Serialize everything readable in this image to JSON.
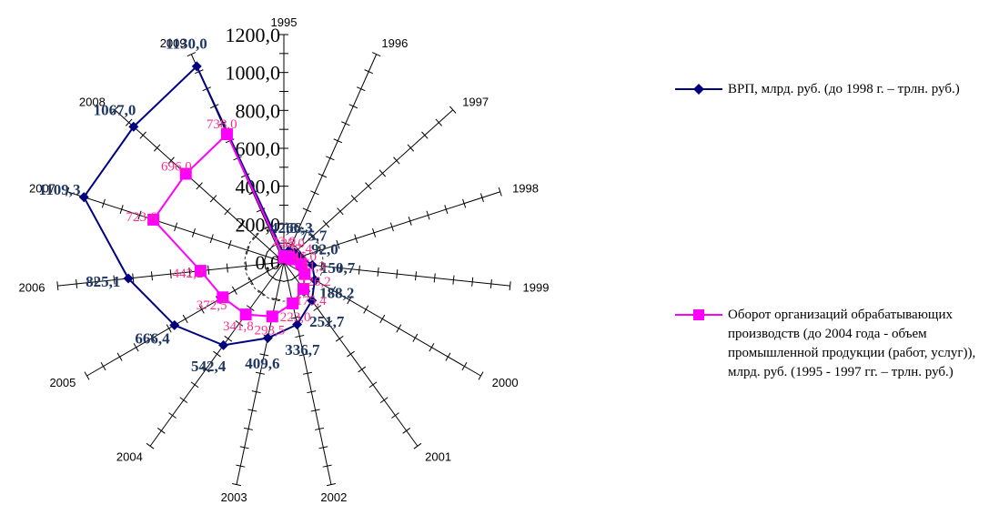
{
  "chart_data": {
    "type": "radar",
    "categories": [
      "1995",
      "1996",
      "1997",
      "1998",
      "1999",
      "2000",
      "2001",
      "2002",
      "2003",
      "2004",
      "2005",
      "2006",
      "2007",
      "2008",
      "2009"
    ],
    "rlim": [
      0,
      1200
    ],
    "r_ticks": [
      "0,0",
      "200,0",
      "400,0",
      "600,0",
      "800,0",
      "1000,0",
      "1200,0"
    ],
    "series": [
      {
        "name": "ВРП, млрд. руб. (до 1998 г. – трлн. руб.)",
        "color": "#000080",
        "marker": "diamond",
        "values": [
          42.8,
          66.3,
          75.7,
          92.0,
          150.7,
          188.2,
          251.7,
          336.7,
          409.6,
          542.4,
          666.4,
          825.1,
          1109.3,
          1067.0,
          1130.0
        ],
        "labels": [
          "42,8",
          "66,3",
          "75,7",
          "92,0",
          "150,7",
          "188,2",
          "251,7",
          "336,7",
          "409,6",
          "542,4",
          "666,4",
          "825,1",
          "1109,3",
          "1067,0",
          "1130,0"
        ]
      },
      {
        "name": "Оборот организаций обрабатывающих производств (до 2004 года - объем промышленной продукции (работ, услуг)), млрд. руб. (1995 - 1997 гг. – трлн. руб.)",
        "color": "#ff00ff",
        "marker": "square",
        "values": [
          23.9,
          35.0,
          37.4,
          46.0,
          91.3,
          126.2,
          175.4,
          223.0,
          293.5,
          341.8,
          372.5,
          442.2,
          723.6,
          696.0,
          738.0
        ],
        "labels": [
          "23,9",
          "35,0",
          "37,4",
          "46,0",
          "91,3",
          "126,2",
          "175,4",
          "223,0",
          "293,5",
          "341,8",
          "372,5",
          "442,2",
          "723,6",
          "696,0",
          "738,0"
        ]
      }
    ],
    "legend": "right",
    "grid": false
  }
}
